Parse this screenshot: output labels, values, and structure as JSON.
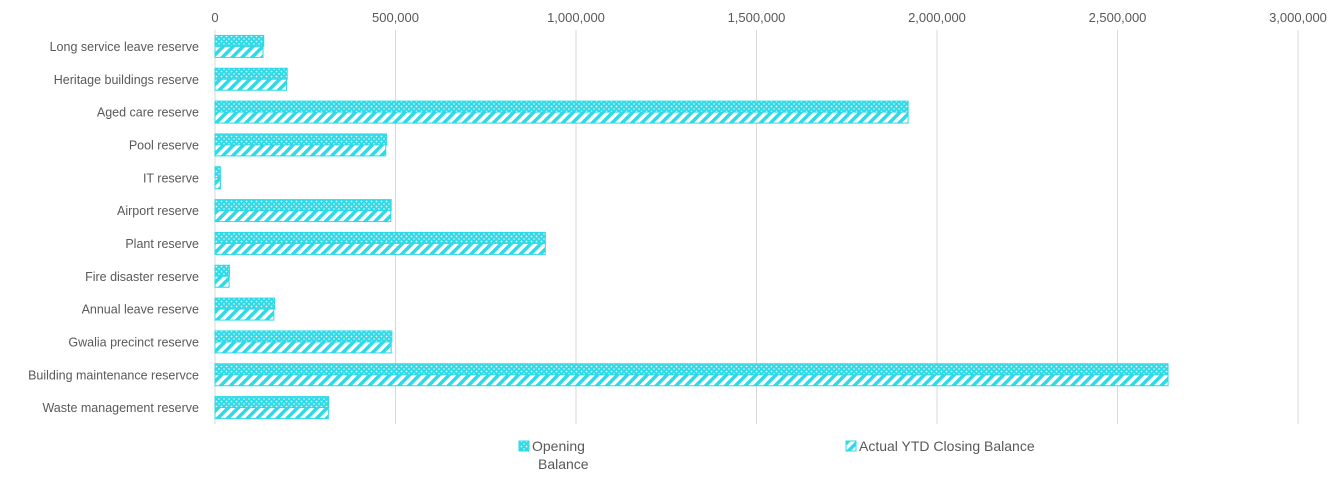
{
  "colors": {
    "series_fill": "#2fd9e6",
    "grid": "#d9d9d9",
    "text": "#595959",
    "background": "#ffffff"
  },
  "chart_data": {
    "type": "bar",
    "orientation": "horizontal",
    "title": "",
    "xlabel": "",
    "ylabel": "",
    "categories": [
      "Long service leave reserve",
      "Heritage buildings reserve",
      "Aged care reserve",
      "Pool reserve",
      "IT reserve",
      "Airport reserve",
      "Plant reserve",
      "Fire disaster reserve",
      "Annual leave reserve",
      "Gwalia precinct reserve",
      "Building maintenance reservce",
      "Waste management reserve"
    ],
    "series": [
      {
        "name": "Opening Balance",
        "pattern": "dots",
        "values": [
          135000,
          200000,
          1920000,
          475000,
          15000,
          488000,
          915000,
          40000,
          165000,
          490000,
          2640000,
          315000
        ]
      },
      {
        "name": "Actual YTD Closing Balance",
        "pattern": "diagonal-stripes",
        "values": [
          133000,
          198000,
          1920000,
          473000,
          15000,
          487000,
          915000,
          39000,
          163000,
          488000,
          2640000,
          314000
        ]
      }
    ],
    "xlim": [
      0,
      3000000
    ],
    "xticks": [
      0,
      500000,
      1000000,
      1500000,
      2000000,
      2500000,
      3000000
    ],
    "xtick_labels": [
      "0",
      "500,000",
      "1,000,000",
      "1,500,000",
      "2,000,000",
      "2,500,000",
      "3,000,000"
    ],
    "xaxis_position": "top",
    "grid": true,
    "legend_position": "bottom",
    "legend": [
      {
        "label": "Opening Balance",
        "icon": "dotted-swatch-icon"
      },
      {
        "label": "Actual YTD Closing Balance",
        "icon": "striped-swatch-icon"
      }
    ]
  }
}
